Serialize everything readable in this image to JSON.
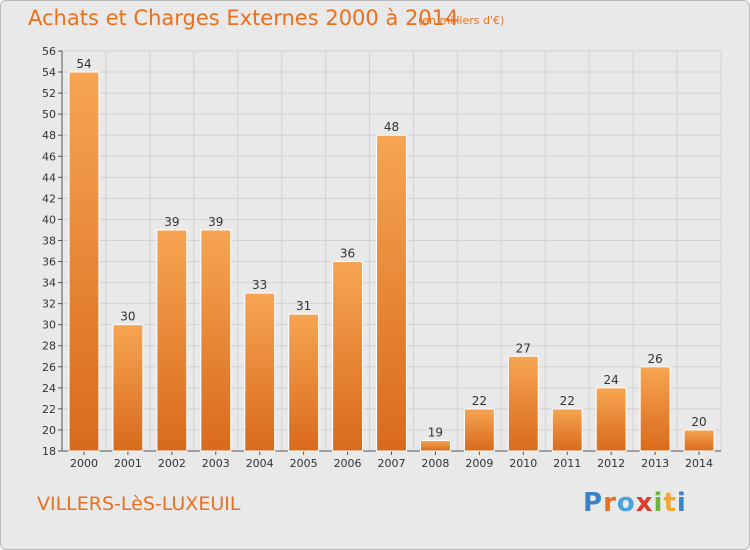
{
  "header": {
    "title": "Achats et Charges Externes 2000 à 2014",
    "subtitle": "(en milliers d'€)"
  },
  "footer": {
    "place": "VILLERS-LèS-LUXEUIL",
    "logo_text": "Proxiti"
  },
  "colors": {
    "accent": "#e8701e",
    "bar_light": "#f6a552",
    "bar_dark": "#d96a1c",
    "background": "#e9e9e9",
    "logo_letters": [
      "#3a83c6",
      "#e8701e",
      "#4aa3df",
      "#e03a2e",
      "#6cb33f",
      "#f0a830",
      "#3a83c6"
    ]
  },
  "chart_data": {
    "type": "bar",
    "categories": [
      "2000",
      "2001",
      "2002",
      "2003",
      "2004",
      "2005",
      "2006",
      "2007",
      "2008",
      "2009",
      "2010",
      "2011",
      "2012",
      "2013",
      "2014"
    ],
    "values": [
      54,
      30,
      39,
      39,
      33,
      31,
      36,
      48,
      19,
      22,
      27,
      22,
      24,
      26,
      20
    ],
    "title": "Achats et Charges Externes 2000 à 2014",
    "subtitle": "(en milliers d'€)",
    "ylim": [
      18,
      56
    ],
    "yticks": [
      18,
      20,
      22,
      24,
      26,
      28,
      30,
      32,
      34,
      36,
      38,
      40,
      42,
      44,
      46,
      48,
      50,
      52,
      54,
      56
    ],
    "grid": true,
    "legend": "none"
  }
}
